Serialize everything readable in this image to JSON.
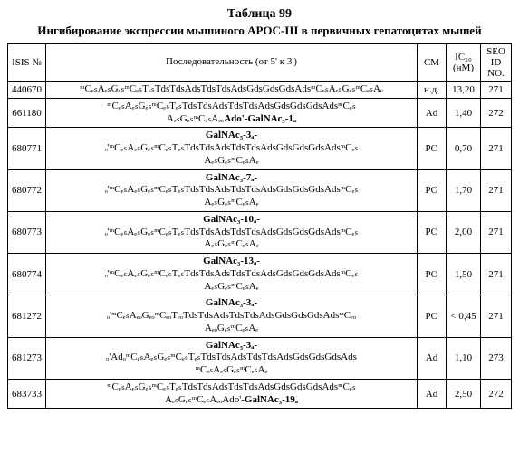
{
  "title": "Таблица 99",
  "subtitle": "Ингибирование экспрессии мышиного APOC-III в первичных гепатоцитах мышей",
  "columns": {
    "isis": "ISIS №",
    "seq": "Последовательность (от 5' к 3')",
    "cm": "СМ",
    "ic50": "IC₅₀ (нМ)",
    "seo": "SEO ID NO."
  },
  "rows": [
    {
      "isis": "440670",
      "seq_lines": [
        "ᵐCₑₛAₑₛGₑₛᵐCₑₛTₑₛTdsTdsAdsTdsTdsAdsGdsGdsGdsAdsᵐCₑₛAₑₛGₑₛᵐCₑₛAₑ"
      ],
      "seq_bold": [],
      "cm": "н.д.",
      "ic50": "13,20",
      "seo": "271"
    },
    {
      "isis": "661180",
      "seq_lines": [
        "ᵐCₑₛAₑₛGₑₛᵐCₑₛTₑₛTdsTdsAdsTdsTdsAdsGdsGdsGdsAdsᵐCₑₛ",
        "AₑₛGₑₛᵐCₑₛAₑₒAdo'-GalNAc₃-1ₐ"
      ],
      "seq_bold": [
        "Ado'-GalNAc₃-1ₐ"
      ],
      "cm": "Ad",
      "ic50": "1,40",
      "seo": "272"
    },
    {
      "isis": "680771",
      "seq_lines": [
        "GalNAc₃-3ₐ-",
        "ₒ'ᵐCₑₛAₑₛGₑₛᵐCₑₛTₑₛTdsTdsAdsTdsTdsAdsGdsGdsGdsAdsᵐCₑₛ",
        "AₑₛGₑₛᵐCₑₛAₑ"
      ],
      "seq_bold": [
        "GalNAc₃-3ₐ-"
      ],
      "cm": "PO",
      "ic50": "0,70",
      "seo": "271"
    },
    {
      "isis": "680772",
      "seq_lines": [
        "GalNAc₃-7ₐ-",
        "ₒ'ᵐCₑₛAₑₛGₑₛᵐCₑₛTₑₛTdsTdsAdsTdsTdsAdsGdsGdsGdsAdsᵐCₑₛ",
        "AₑₛGₑₛᵐCₑₛAₑ"
      ],
      "seq_bold": [
        "GalNAc₃-7ₐ-"
      ],
      "cm": "PO",
      "ic50": "1,70",
      "seo": "271"
    },
    {
      "isis": "680773",
      "seq_lines": [
        "GalNAc₃-10ₐ-",
        "ₒ'ᵐCₑₛAₑₛGₑₛᵐCₑₛTₑₛTdsTdsAdsTdsTdsAdsGdsGdsGdsAdsᵐCₑₛ",
        "AₑₛGₑₛᵐCₑₛAₑ"
      ],
      "seq_bold": [
        "GalNAc₃-10ₐ-"
      ],
      "cm": "PO",
      "ic50": "2,00",
      "seo": "271"
    },
    {
      "isis": "680774",
      "seq_lines": [
        "GalNAc₃-13ₐ-",
        "ₒ'ᵐCₑₛAₑₛGₑₛᵐCₑₛTₑₛTdsTdsAdsTdsTdsAdsGdsGdsGdsAdsᵐCₑₛ",
        "AₑₛGₑₛᵐCₑₛAₑ"
      ],
      "seq_bold": [
        "GalNAc₃-13ₐ-"
      ],
      "cm": "PO",
      "ic50": "1,50",
      "seo": "271"
    },
    {
      "isis": "681272",
      "seq_lines": [
        "GalNAc₃-3ₐ-",
        "ₒ'ᵐCₑₛAₑₒGₑₒᵐCₑₒTₑₒTdsTdsAdsTdsTdsAdsGdsGdsGdsAdsᵐCₑₒ",
        "AₑₒGₑₛᵐCₑₛAₑ"
      ],
      "seq_bold": [
        "GalNAc₃-3ₐ-"
      ],
      "cm": "PO",
      "ic50": "< 0,45",
      "seo": "271"
    },
    {
      "isis": "681273",
      "seq_lines": [
        "GalNAc₃-3ₐ-",
        "ₒ'AdₒᵐCₑₛAₑₛGₑₛᵐCₑₛTₑₛTdsTdsAdsTdsTdsAdsGdsGdsGdsAds",
        "ᵐCₑₛAₑₛGₑₛᵐCₑₛAₑ"
      ],
      "seq_bold": [
        "GalNAc₃-3ₐ-"
      ],
      "cm": "Ad",
      "ic50": "1,10",
      "seo": "273"
    },
    {
      "isis": "683733",
      "seq_lines": [
        "ᵐCₑₛAₑₛGₑₛᵐCₑₛTₑₛTdsTdsAdsTdsTdsAdsGdsGdsGdsAdsᵐCₑₛ",
        "AₑₛGₑₛᵐCₑₛAₑₒAdo'-GalNAc₃-19ₐ"
      ],
      "seq_bold": [
        "GalNAc₃-19ₐ"
      ],
      "cm": "Ad",
      "ic50": "2,50",
      "seo": "272"
    }
  ],
  "style": {
    "background": "#ffffff",
    "text_color": "#000000",
    "border_color": "#000000",
    "font_family": "Times New Roman",
    "title_fontsize": 14,
    "subtitle_fontsize": 13,
    "cell_fontsize": 11
  }
}
